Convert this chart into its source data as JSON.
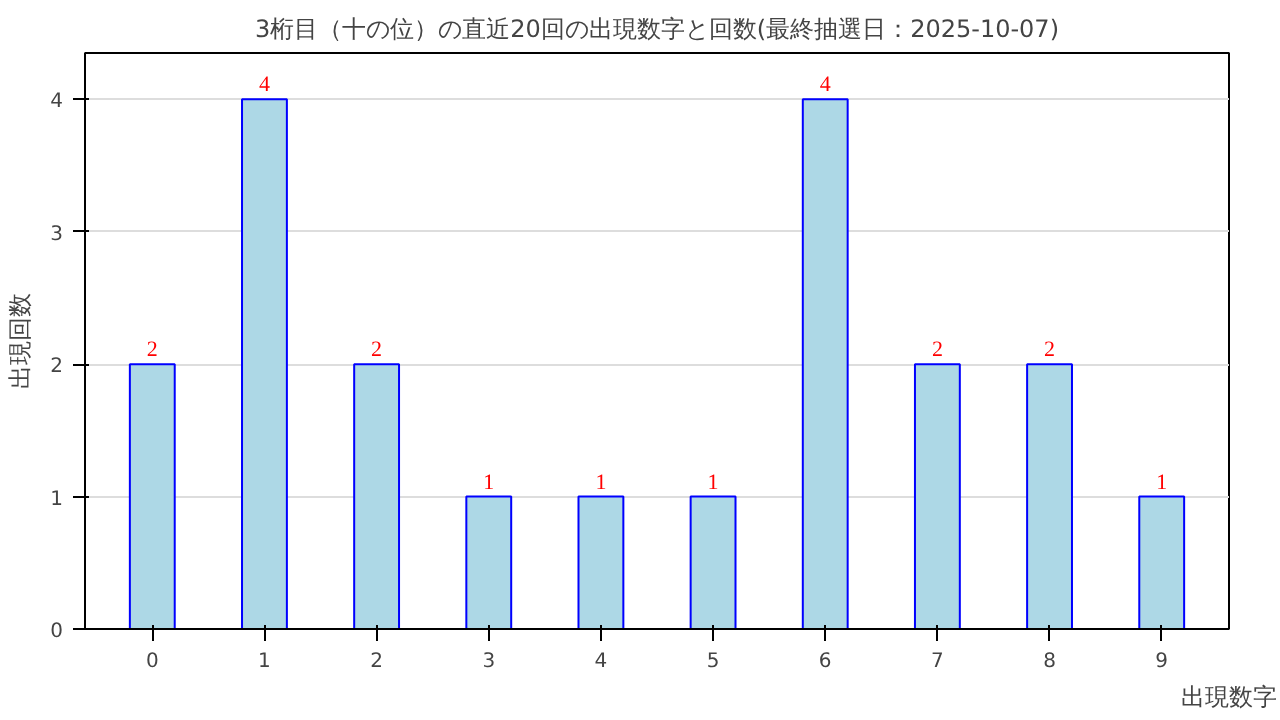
{
  "chart_data": {
    "type": "bar",
    "title": "3桁目（十の位）の直近20回の出現数字と回数(最終抽選日：2025-10-07)",
    "xlabel": "出現数字",
    "ylabel": "出現回数",
    "categories": [
      "0",
      "1",
      "2",
      "3",
      "4",
      "5",
      "6",
      "7",
      "8",
      "9"
    ],
    "values": [
      2,
      4,
      2,
      1,
      1,
      1,
      4,
      2,
      2,
      1
    ],
    "color": "#add8e6",
    "ylim": [
      0,
      4.35
    ],
    "yticks": [
      0,
      1,
      2,
      3,
      4
    ],
    "grid": "y",
    "data_labels": true
  }
}
